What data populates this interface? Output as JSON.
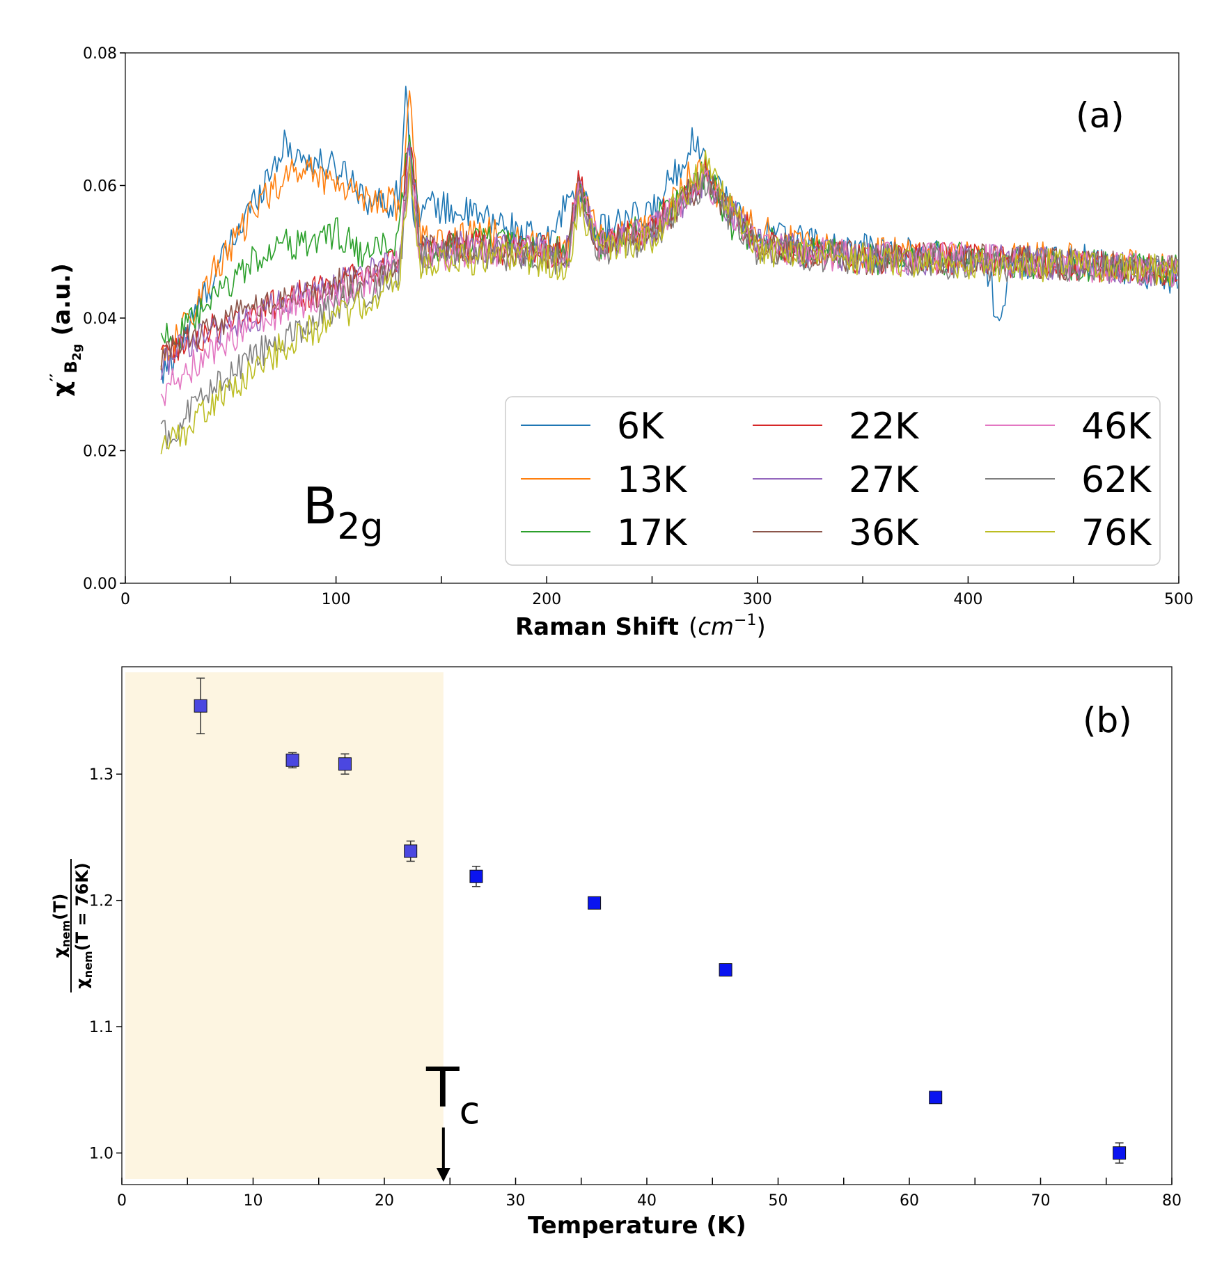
{
  "chart_data": [
    {
      "type": "line",
      "panel_label": "(a)",
      "annotation_main": "B",
      "annotation_sub": "2g",
      "xlabel_bold": "Raman Shift",
      "xlabel_unit_open": "(",
      "xlabel_unit_cm": "cm",
      "xlabel_unit_exp": "−1",
      "xlabel_unit_close": ")",
      "ylabel_main": "χ",
      "ylabel_prime": "′′",
      "ylabel_sub": "B",
      "ylabel_subsub": "2g",
      "ylabel_tail": " (a.u.)",
      "xlim": [
        0,
        500
      ],
      "ylim": [
        0.0,
        0.08
      ],
      "xticks": [
        0,
        100,
        200,
        300,
        400,
        500
      ],
      "xtick_labels": [
        "0",
        "100",
        "200",
        "300",
        "400",
        "500"
      ],
      "yticks": [
        0.0,
        0.02,
        0.04,
        0.06,
        0.08
      ],
      "ytick_labels": [
        "0.00",
        "0.02",
        "0.04",
        "0.06",
        "0.08"
      ],
      "legend_position": "lower-right",
      "series": [
        {
          "name": "6K",
          "color": "#1f77b4",
          "x": [
            17,
            25,
            40,
            55,
            65,
            75,
            85,
            95,
            105,
            115,
            125,
            130,
            133,
            137,
            145,
            160,
            180,
            200,
            213,
            225,
            250,
            270,
            285,
            300,
            330,
            360,
            400,
            410,
            414,
            420,
            450,
            500
          ],
          "y": [
            0.031,
            0.035,
            0.045,
            0.054,
            0.06,
            0.066,
            0.064,
            0.063,
            0.062,
            0.058,
            0.057,
            0.059,
            0.074,
            0.056,
            0.057,
            0.056,
            0.054,
            0.051,
            0.06,
            0.053,
            0.056,
            0.067,
            0.058,
            0.053,
            0.051,
            0.05,
            0.049,
            0.047,
            0.039,
            0.048,
            0.049,
            0.046
          ]
        },
        {
          "name": "13K",
          "color": "#ff7f0e",
          "x": [
            17,
            25,
            40,
            55,
            65,
            75,
            85,
            95,
            105,
            115,
            125,
            130,
            135,
            140,
            150,
            170,
            190,
            210,
            215,
            225,
            250,
            272,
            290,
            320,
            350,
            400,
            450,
            500
          ],
          "y": [
            0.034,
            0.037,
            0.046,
            0.053,
            0.058,
            0.061,
            0.063,
            0.061,
            0.06,
            0.058,
            0.058,
            0.056,
            0.074,
            0.052,
            0.051,
            0.053,
            0.051,
            0.05,
            0.06,
            0.052,
            0.054,
            0.063,
            0.055,
            0.051,
            0.05,
            0.049,
            0.049,
            0.047
          ]
        },
        {
          "name": "17K",
          "color": "#2ca02c",
          "x": [
            17,
            25,
            40,
            55,
            70,
            85,
            100,
            115,
            125,
            130,
            135,
            140,
            150,
            170,
            190,
            210,
            215,
            225,
            250,
            275,
            290,
            320,
            350,
            400,
            450,
            500
          ],
          "y": [
            0.038,
            0.037,
            0.042,
            0.047,
            0.051,
            0.051,
            0.053,
            0.049,
            0.051,
            0.052,
            0.07,
            0.05,
            0.05,
            0.052,
            0.05,
            0.05,
            0.06,
            0.051,
            0.054,
            0.062,
            0.053,
            0.05,
            0.049,
            0.049,
            0.048,
            0.047
          ]
        },
        {
          "name": "22K",
          "color": "#d62728",
          "x": [
            17,
            25,
            40,
            60,
            80,
            100,
            120,
            130,
            135,
            140,
            160,
            190,
            210,
            215,
            225,
            250,
            275,
            300,
            350,
            400,
            450,
            500
          ],
          "y": [
            0.034,
            0.036,
            0.038,
            0.041,
            0.043,
            0.045,
            0.047,
            0.049,
            0.068,
            0.05,
            0.051,
            0.05,
            0.05,
            0.061,
            0.051,
            0.054,
            0.062,
            0.051,
            0.049,
            0.049,
            0.048,
            0.047
          ]
        },
        {
          "name": "27K",
          "color": "#9467bd",
          "x": [
            17,
            25,
            40,
            60,
            80,
            100,
            120,
            130,
            135,
            140,
            160,
            190,
            210,
            215,
            225,
            250,
            275,
            300,
            350,
            400,
            450,
            500
          ],
          "y": [
            0.033,
            0.035,
            0.038,
            0.04,
            0.043,
            0.045,
            0.047,
            0.049,
            0.067,
            0.05,
            0.051,
            0.05,
            0.05,
            0.06,
            0.051,
            0.053,
            0.061,
            0.051,
            0.049,
            0.049,
            0.048,
            0.047
          ]
        },
        {
          "name": "36K",
          "color": "#8c564b",
          "x": [
            17,
            25,
            40,
            60,
            80,
            100,
            120,
            130,
            135,
            140,
            160,
            190,
            210,
            215,
            225,
            250,
            275,
            300,
            350,
            400,
            450,
            500
          ],
          "y": [
            0.033,
            0.036,
            0.039,
            0.041,
            0.043,
            0.045,
            0.046,
            0.048,
            0.066,
            0.05,
            0.051,
            0.05,
            0.05,
            0.06,
            0.051,
            0.053,
            0.061,
            0.051,
            0.049,
            0.049,
            0.048,
            0.047
          ]
        },
        {
          "name": "46K",
          "color": "#e377c2",
          "x": [
            17,
            25,
            40,
            60,
            80,
            100,
            120,
            130,
            135,
            140,
            160,
            190,
            210,
            215,
            225,
            250,
            275,
            300,
            350,
            400,
            450,
            500
          ],
          "y": [
            0.028,
            0.031,
            0.035,
            0.039,
            0.042,
            0.044,
            0.046,
            0.048,
            0.065,
            0.049,
            0.05,
            0.05,
            0.049,
            0.059,
            0.051,
            0.053,
            0.061,
            0.051,
            0.049,
            0.049,
            0.048,
            0.047
          ]
        },
        {
          "name": "62K",
          "color": "#7f7f7f",
          "x": [
            17,
            25,
            40,
            60,
            80,
            100,
            120,
            130,
            135,
            140,
            160,
            190,
            210,
            215,
            225,
            250,
            275,
            300,
            350,
            400,
            450,
            500
          ],
          "y": [
            0.022,
            0.024,
            0.029,
            0.034,
            0.038,
            0.042,
            0.045,
            0.047,
            0.064,
            0.049,
            0.05,
            0.049,
            0.049,
            0.058,
            0.05,
            0.052,
            0.06,
            0.05,
            0.049,
            0.048,
            0.048,
            0.047
          ]
        },
        {
          "name": "76K",
          "color": "#bcbd22",
          "x": [
            17,
            25,
            40,
            60,
            80,
            100,
            120,
            130,
            135,
            140,
            160,
            190,
            210,
            215,
            225,
            250,
            275,
            300,
            350,
            400,
            450,
            500
          ],
          "y": [
            0.021,
            0.022,
            0.027,
            0.032,
            0.037,
            0.04,
            0.043,
            0.046,
            0.063,
            0.048,
            0.049,
            0.049,
            0.048,
            0.057,
            0.05,
            0.052,
            0.063,
            0.05,
            0.049,
            0.048,
            0.048,
            0.047
          ]
        }
      ]
    },
    {
      "type": "scatter",
      "panel_label": "(b)",
      "annotation_main": "T",
      "annotation_sub": "c",
      "tc_value": 24.5,
      "shaded_region": [
        0,
        24.5
      ],
      "xlabel": "Temperature (K)",
      "ylabel_num_main": "χ",
      "ylabel_num_sub": "nem",
      "ylabel_num_tail": "(T)",
      "ylabel_den_main": "χ",
      "ylabel_den_sub": "nem",
      "ylabel_den_tail": "(T = 76K)",
      "xlim": [
        0,
        80
      ],
      "ylim": [
        0.975,
        1.385
      ],
      "xticks": [
        0,
        10,
        20,
        30,
        40,
        50,
        60,
        70,
        80
      ],
      "xtick_labels": [
        "0",
        "10",
        "20",
        "30",
        "40",
        "50",
        "60",
        "70",
        "80"
      ],
      "yticks": [
        1.0,
        1.1,
        1.2,
        1.3
      ],
      "ytick_labels": [
        "1.0",
        "1.1",
        "1.2",
        "1.3"
      ],
      "points": [
        {
          "x": 6,
          "y": 1.354,
          "err": 0.022,
          "color": "#4b47e0"
        },
        {
          "x": 13,
          "y": 1.311,
          "err": 0.006,
          "color": "#4b47e0"
        },
        {
          "x": 17,
          "y": 1.308,
          "err": 0.008,
          "color": "#4b47e0"
        },
        {
          "x": 22,
          "y": 1.239,
          "err": 0.008,
          "color": "#4b47e0"
        },
        {
          "x": 27,
          "y": 1.219,
          "err": 0.008,
          "color": "#0a14f0"
        },
        {
          "x": 36,
          "y": 1.198,
          "err": 0.004,
          "color": "#0a14f0"
        },
        {
          "x": 46,
          "y": 1.145,
          "err": 0.004,
          "color": "#0a14f0"
        },
        {
          "x": 62,
          "y": 1.044,
          "err": 0.004,
          "color": "#0a14f0"
        },
        {
          "x": 76,
          "y": 1.0,
          "err": 0.008,
          "color": "#0a14f0"
        }
      ]
    }
  ]
}
